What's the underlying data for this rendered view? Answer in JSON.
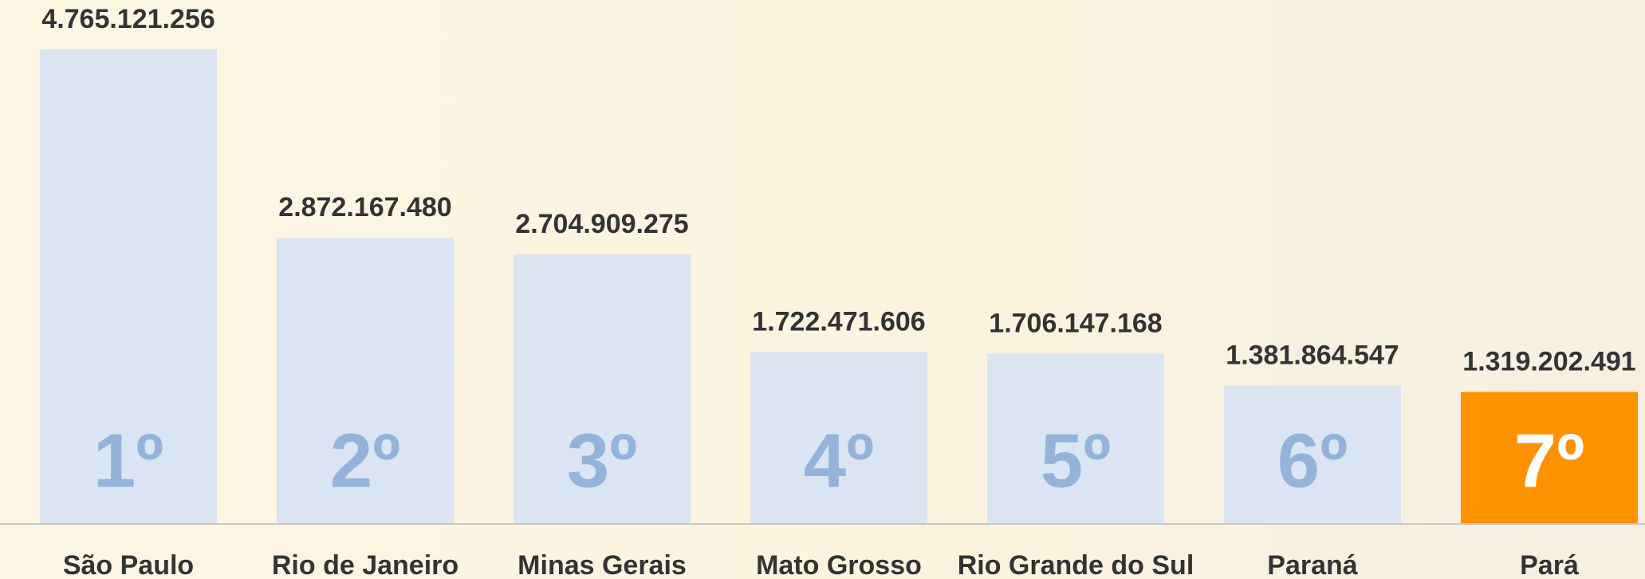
{
  "chart_data": {
    "type": "bar",
    "categories": [
      "São Paulo",
      "Rio de Janeiro",
      "Minas Gerais",
      "Mato Grosso",
      "Rio Grande do Sul",
      "Paraná",
      "Pará"
    ],
    "values": [
      4765121256,
      2872167480,
      2704909275,
      1722471606,
      1706147168,
      1381864547,
      1319202491
    ],
    "value_labels": [
      "4.765.121.256",
      "2.872.167.480",
      "2.704.909.275",
      "1.722.471.606",
      "1.706.147.168",
      "1.381.864.547",
      "1.319.202.491"
    ],
    "rank_labels": [
      "1º",
      "2º",
      "3º",
      "4º",
      "5º",
      "6º",
      "7º"
    ],
    "colors": [
      "#dae4f2",
      "#dae4f2",
      "#dae4f2",
      "#dae4f2",
      "#dae4f2",
      "#dae4f2",
      "#ff9200"
    ]
  }
}
